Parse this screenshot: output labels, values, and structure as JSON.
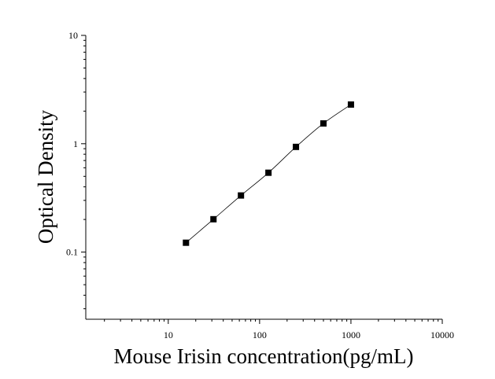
{
  "chart_data": {
    "type": "scatter",
    "x_label": "Mouse Irisin concentration(pg/mL)",
    "y_label": "Optical Density",
    "x": [
      15.625,
      31.25,
      62.5,
      125,
      250,
      500,
      1000
    ],
    "y": [
      0.122,
      0.201,
      0.333,
      0.54,
      0.935,
      1.54,
      2.3
    ],
    "color": "#000000",
    "fit_line": true,
    "xscale": "log",
    "yscale": "log",
    "xlim": [
      1.25,
      10000
    ],
    "ylim": [
      0.024,
      10
    ],
    "xticks": [
      10,
      100,
      1000,
      10000
    ],
    "yticks": [
      0.1,
      1,
      10
    ],
    "xminorticks": [
      2,
      3,
      4,
      5,
      6,
      7,
      8,
      9,
      20,
      30,
      40,
      50,
      60,
      70,
      80,
      90,
      200,
      300,
      400,
      500,
      600,
      700,
      800,
      900,
      2000,
      3000,
      4000,
      5000,
      6000,
      7000,
      8000,
      9000
    ],
    "yminorticks": [
      0.03,
      0.04,
      0.05,
      0.06,
      0.07,
      0.08,
      0.09,
      0.2,
      0.3,
      0.4,
      0.5,
      0.6,
      0.7,
      0.8,
      0.9,
      2,
      3,
      4,
      5,
      6,
      7,
      8,
      9
    ]
  }
}
